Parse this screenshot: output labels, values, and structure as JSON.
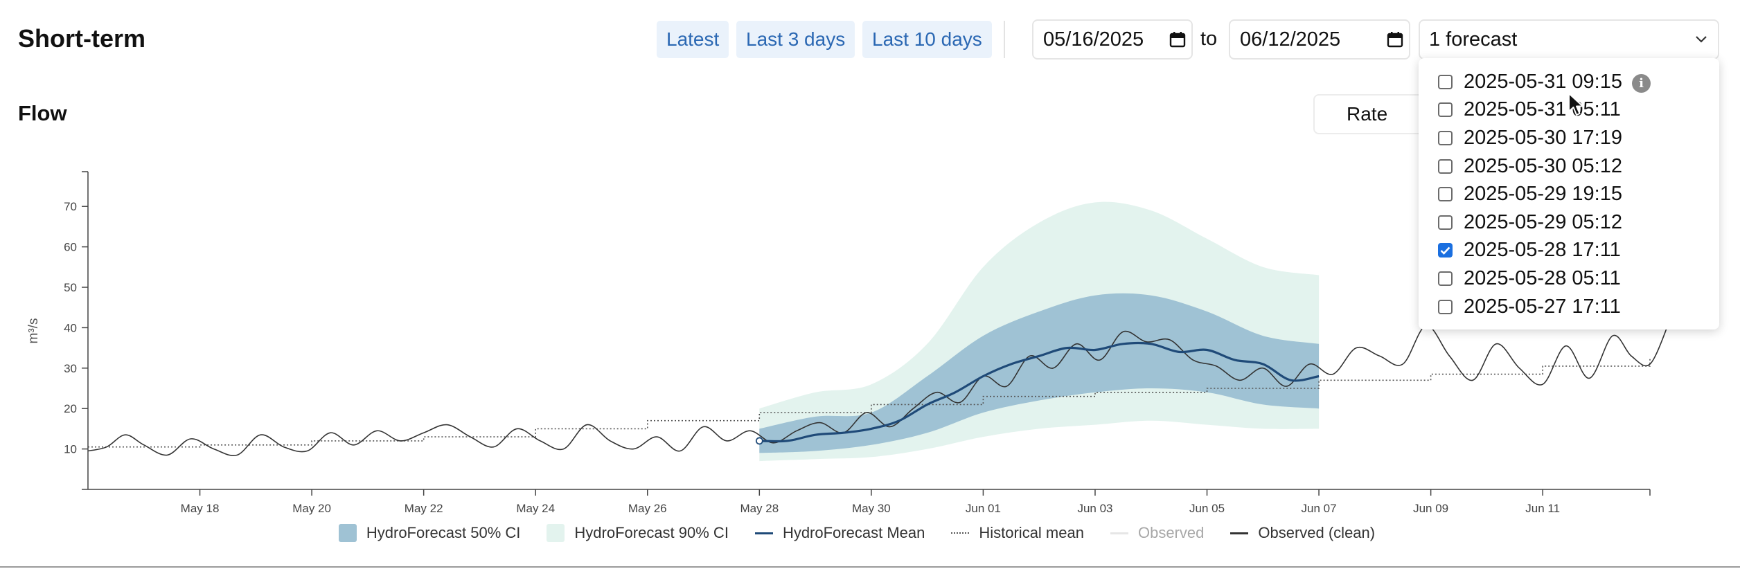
{
  "header": {
    "title": "Short-term",
    "quick_ranges": [
      "Latest",
      "Last 3 days",
      "Last 10 days"
    ],
    "date_from": "05/16/2025",
    "to_label": "to",
    "date_to": "06/12/2025",
    "forecast_select": "1 forecast"
  },
  "section": {
    "title": "Flow",
    "rate_select": "Rate"
  },
  "forecast_dropdown": {
    "items": [
      {
        "label": "2025-05-31 09:15",
        "checked": false,
        "info": "i"
      },
      {
        "label": "2025-05-31 05:11",
        "checked": false
      },
      {
        "label": "2025-05-30 17:19",
        "checked": false
      },
      {
        "label": "2025-05-30 05:12",
        "checked": false
      },
      {
        "label": "2025-05-29 19:15",
        "checked": false
      },
      {
        "label": "2025-05-29 05:12",
        "checked": false
      },
      {
        "label": "2025-05-28 17:11",
        "checked": true
      },
      {
        "label": "2025-05-28 05:11",
        "checked": false
      },
      {
        "label": "2025-05-27 17:11",
        "checked": false
      }
    ]
  },
  "colors": {
    "accent": "#2b68b3",
    "ci50": "#9fc2d4",
    "ci90": "#e3f3ee",
    "mean": "#1f4a78",
    "observed": "#e6e6e6",
    "observed_clean": "#333333",
    "historical": "#555555"
  },
  "chart_data": {
    "type": "line",
    "ylabel": "m³/s",
    "xlabel": "",
    "yticks": [
      10,
      20,
      30,
      40,
      50,
      60,
      70
    ],
    "ylim": [
      0,
      78
    ],
    "xlim": [
      "2025-05-16",
      "2025-06-12 22:00"
    ],
    "xticks": [
      {
        "date": "2025-05-18",
        "label": "May 18"
      },
      {
        "date": "2025-05-20",
        "label": "May 20"
      },
      {
        "date": "2025-05-22",
        "label": "May 22"
      },
      {
        "date": "2025-05-24",
        "label": "May 24"
      },
      {
        "date": "2025-05-26",
        "label": "May 26"
      },
      {
        "date": "2025-05-28",
        "label": "May 28"
      },
      {
        "date": "2025-05-30",
        "label": "May 30"
      },
      {
        "date": "2025-06-01",
        "label": "Jun 01"
      },
      {
        "date": "2025-06-03",
        "label": "Jun 03"
      },
      {
        "date": "2025-06-05",
        "label": "Jun 05"
      },
      {
        "date": "2025-06-07",
        "label": "Jun 07"
      },
      {
        "date": "2025-06-09",
        "label": "Jun 09"
      },
      {
        "date": "2025-06-11",
        "label": "Jun 11"
      }
    ],
    "legend": [
      {
        "label": "HydroForecast 50% CI",
        "kind": "area",
        "color": "#9fc2d4"
      },
      {
        "label": "HydroForecast 90% CI",
        "kind": "area",
        "color": "#e3f3ee"
      },
      {
        "label": "HydroForecast Mean",
        "kind": "line",
        "color": "#1f4a78"
      },
      {
        "label": "Historical mean",
        "kind": "dotted",
        "color": "#555555"
      },
      {
        "label": "Observed",
        "kind": "line",
        "color": "#e6e6e6"
      },
      {
        "label": "Observed (clean)",
        "kind": "line",
        "color": "#333333"
      }
    ],
    "series": [
      {
        "name": "Observed (clean)",
        "points": [
          [
            "2025-05-16 00:00",
            9.5
          ],
          [
            "2025-05-16 08:00",
            10.5
          ],
          [
            "2025-05-16 16:00",
            13.5
          ],
          [
            "2025-05-17 00:00",
            11
          ],
          [
            "2025-05-17 10:00",
            8.5
          ],
          [
            "2025-05-17 20:00",
            12.5
          ],
          [
            "2025-05-18 06:00",
            10
          ],
          [
            "2025-05-18 16:00",
            8.5
          ],
          [
            "2025-05-19 02:00",
            13.5
          ],
          [
            "2025-05-19 12:00",
            10.5
          ],
          [
            "2025-05-19 22:00",
            9.5
          ],
          [
            "2025-05-20 08:00",
            14
          ],
          [
            "2025-05-20 18:00",
            11
          ],
          [
            "2025-05-21 04:00",
            14.5
          ],
          [
            "2025-05-21 14:00",
            12
          ],
          [
            "2025-05-22 00:00",
            14
          ],
          [
            "2025-05-22 10:00",
            16
          ],
          [
            "2025-05-22 20:00",
            13
          ],
          [
            "2025-05-23 06:00",
            10.5
          ],
          [
            "2025-05-23 16:00",
            15
          ],
          [
            "2025-05-24 02:00",
            12
          ],
          [
            "2025-05-24 12:00",
            10
          ],
          [
            "2025-05-24 22:00",
            16
          ],
          [
            "2025-05-25 08:00",
            12
          ],
          [
            "2025-05-25 18:00",
            10
          ],
          [
            "2025-05-26 04:00",
            13
          ],
          [
            "2025-05-26 14:00",
            9.5
          ],
          [
            "2025-05-27 00:00",
            15.5
          ],
          [
            "2025-05-27 10:00",
            12
          ],
          [
            "2025-05-27 20:00",
            14.5
          ],
          [
            "2025-05-28 06:00",
            11.5
          ],
          [
            "2025-05-28 16:00",
            14.5
          ],
          [
            "2025-05-29 02:00",
            16.5
          ],
          [
            "2025-05-29 12:00",
            14
          ],
          [
            "2025-05-29 22:00",
            19
          ],
          [
            "2025-05-30 08:00",
            15.5
          ],
          [
            "2025-05-30 18:00",
            20
          ],
          [
            "2025-05-31 04:00",
            24
          ],
          [
            "2025-05-31 14:00",
            21.5
          ],
          [
            "2025-06-01 00:00",
            28
          ],
          [
            "2025-06-01 10:00",
            25.5
          ],
          [
            "2025-06-01 20:00",
            33
          ],
          [
            "2025-06-02 06:00",
            30
          ],
          [
            "2025-06-02 16:00",
            36
          ],
          [
            "2025-06-03 02:00",
            32
          ],
          [
            "2025-06-03 12:00",
            39
          ],
          [
            "2025-06-03 22:00",
            36.5
          ],
          [
            "2025-06-04 08:00",
            37
          ],
          [
            "2025-06-04 18:00",
            32
          ],
          [
            "2025-06-05 04:00",
            30.5
          ],
          [
            "2025-06-05 14:00",
            27
          ],
          [
            "2025-06-06 00:00",
            30
          ],
          [
            "2025-06-06 10:00",
            25.5
          ],
          [
            "2025-06-06 20:00",
            31
          ],
          [
            "2025-06-07 06:00",
            28.5
          ],
          [
            "2025-06-07 16:00",
            35
          ],
          [
            "2025-06-08 02:00",
            33
          ],
          [
            "2025-06-08 12:00",
            31
          ],
          [
            "2025-06-08 22:00",
            40.5
          ],
          [
            "2025-06-09 08:00",
            33
          ],
          [
            "2025-06-09 18:00",
            27
          ],
          [
            "2025-06-10 04:00",
            36
          ],
          [
            "2025-06-10 14:00",
            30
          ],
          [
            "2025-06-11 00:00",
            26
          ],
          [
            "2025-06-11 10:00",
            35.5
          ],
          [
            "2025-06-11 20:00",
            27.5
          ],
          [
            "2025-06-12 06:00",
            38
          ],
          [
            "2025-06-12 14:00",
            33
          ],
          [
            "2025-06-12 22:00",
            31
          ],
          [
            "2025-06-13 06:00",
            41
          ]
        ]
      },
      {
        "name": "HydroForecast Mean",
        "points": [
          [
            "2025-05-28 00:00",
            12
          ],
          [
            "2025-05-28 12:00",
            12
          ],
          [
            "2025-05-29 00:00",
            13.5
          ],
          [
            "2025-05-29 12:00",
            14
          ],
          [
            "2025-05-30 00:00",
            15
          ],
          [
            "2025-05-30 12:00",
            17
          ],
          [
            "2025-05-31 00:00",
            21
          ],
          [
            "2025-05-31 12:00",
            24
          ],
          [
            "2025-06-01 00:00",
            28
          ],
          [
            "2025-06-01 12:00",
            31
          ],
          [
            "2025-06-02 00:00",
            33
          ],
          [
            "2025-06-02 12:00",
            35
          ],
          [
            "2025-06-03 00:00",
            34.5
          ],
          [
            "2025-06-03 12:00",
            36
          ],
          [
            "2025-06-04 00:00",
            36
          ],
          [
            "2025-06-04 12:00",
            34
          ],
          [
            "2025-06-05 00:00",
            34.5
          ],
          [
            "2025-06-05 12:00",
            32
          ],
          [
            "2025-06-06 00:00",
            31
          ],
          [
            "2025-06-06 12:00",
            27
          ],
          [
            "2025-06-07 00:00",
            28
          ]
        ]
      },
      {
        "name": "HydroForecast 50% CI",
        "lower": [
          [
            "2025-05-28 00:00",
            9
          ],
          [
            "2025-05-29 00:00",
            9.5
          ],
          [
            "2025-05-30 00:00",
            11
          ],
          [
            "2025-05-31 00:00",
            14
          ],
          [
            "2025-06-01 00:00",
            19
          ],
          [
            "2025-06-02 00:00",
            22
          ],
          [
            "2025-06-03 00:00",
            24
          ],
          [
            "2025-06-04 00:00",
            25
          ],
          [
            "2025-06-05 00:00",
            24
          ],
          [
            "2025-06-06 00:00",
            21
          ],
          [
            "2025-06-07 00:00",
            20
          ]
        ],
        "upper": [
          [
            "2025-05-28 00:00",
            15
          ],
          [
            "2025-05-29 00:00",
            18
          ],
          [
            "2025-05-30 00:00",
            19
          ],
          [
            "2025-05-31 00:00",
            28
          ],
          [
            "2025-06-01 00:00",
            38
          ],
          [
            "2025-06-02 00:00",
            44
          ],
          [
            "2025-06-03 00:00",
            48
          ],
          [
            "2025-06-04 00:00",
            48
          ],
          [
            "2025-06-05 00:00",
            44
          ],
          [
            "2025-06-06 00:00",
            38
          ],
          [
            "2025-06-07 00:00",
            36
          ]
        ]
      },
      {
        "name": "HydroForecast 90% CI",
        "lower": [
          [
            "2025-05-28 00:00",
            7
          ],
          [
            "2025-05-29 00:00",
            7.5
          ],
          [
            "2025-05-30 00:00",
            8
          ],
          [
            "2025-05-31 00:00",
            10
          ],
          [
            "2025-06-01 00:00",
            13
          ],
          [
            "2025-06-02 00:00",
            15
          ],
          [
            "2025-06-03 00:00",
            16
          ],
          [
            "2025-06-04 00:00",
            17
          ],
          [
            "2025-06-05 00:00",
            16
          ],
          [
            "2025-06-06 00:00",
            15
          ],
          [
            "2025-06-07 00:00",
            15
          ]
        ],
        "upper": [
          [
            "2025-05-28 00:00",
            20
          ],
          [
            "2025-05-29 00:00",
            24
          ],
          [
            "2025-05-30 00:00",
            26
          ],
          [
            "2025-05-31 00:00",
            36
          ],
          [
            "2025-06-01 00:00",
            55
          ],
          [
            "2025-06-02 00:00",
            66
          ],
          [
            "2025-06-03 00:00",
            71
          ],
          [
            "2025-06-04 00:00",
            69
          ],
          [
            "2025-06-05 00:00",
            62
          ],
          [
            "2025-06-06 00:00",
            55
          ],
          [
            "2025-06-07 00:00",
            53
          ]
        ]
      },
      {
        "name": "Historical mean",
        "points": [
          [
            "2025-05-16 00:00",
            10.5
          ],
          [
            "2025-05-18 00:00",
            11
          ],
          [
            "2025-05-20 00:00",
            12
          ],
          [
            "2025-05-22 00:00",
            13
          ],
          [
            "2025-05-24 00:00",
            15
          ],
          [
            "2025-05-26 00:00",
            17
          ],
          [
            "2025-05-28 00:00",
            19
          ],
          [
            "2025-05-30 00:00",
            21
          ],
          [
            "2025-06-01 00:00",
            23
          ],
          [
            "2025-06-03 00:00",
            24
          ],
          [
            "2025-06-05 00:00",
            25
          ],
          [
            "2025-06-07 00:00",
            27
          ],
          [
            "2025-06-09 00:00",
            28.5
          ],
          [
            "2025-06-11 00:00",
            30.5
          ],
          [
            "2025-06-12 22:00",
            32.5
          ]
        ]
      }
    ]
  }
}
